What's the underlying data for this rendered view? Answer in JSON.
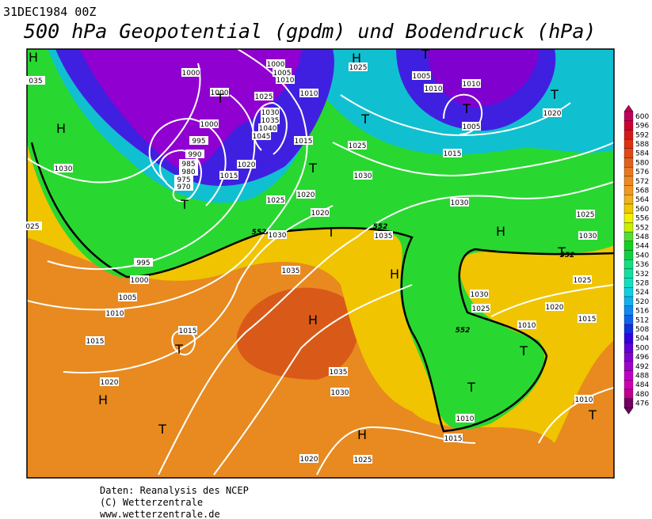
{
  "header": {
    "date": "31DEC1984 00Z",
    "title": "500 hPa Geopotential (gpdm) und Bodendruck (hPa)"
  },
  "map": {
    "isobar_labels": [
      1000,
      1000,
      1000,
      1000,
      1005,
      1010,
      1025,
      1030,
      1035,
      1040,
      1045,
      1010,
      1015,
      1020,
      1015,
      995,
      990,
      985,
      980,
      975,
      970,
      1030,
      "035",
      "025",
      1025,
      1005,
      1010,
      1010,
      1005,
      1015,
      1020,
      1025,
      1030,
      1020,
      1025,
      1020,
      1030,
      1035,
      1030,
      1025,
      1030,
      995,
      1000,
      1005,
      1010,
      1035,
      1015,
      1015,
      1020,
      1035,
      1030,
      1030,
      1025,
      1020,
      1025,
      1015,
      1010,
      1010,
      1015,
      1010,
      1020,
      1025
    ],
    "contour_labels": [
      552,
      552,
      552,
      552
    ],
    "high_markers": [
      "H",
      "H",
      "H",
      "H",
      "H",
      "H",
      "H",
      "H"
    ],
    "low_markers": [
      "T",
      "T",
      "T",
      "T",
      "T",
      "T",
      "T",
      "T",
      "T",
      "T",
      "T",
      "T",
      "T",
      "T"
    ]
  },
  "colorbar": {
    "levels": [
      600,
      596,
      592,
      588,
      584,
      580,
      576,
      572,
      568,
      564,
      560,
      556,
      552,
      548,
      544,
      540,
      536,
      532,
      528,
      524,
      520,
      516,
      512,
      508,
      504,
      500,
      496,
      492,
      488,
      484,
      480,
      476
    ],
    "colors": [
      "#c0005a",
      "#d00030",
      "#d81818",
      "#e03010",
      "#e04818",
      "#e06020",
      "#e87820",
      "#f08820",
      "#f09820",
      "#f0b020",
      "#f0c800",
      "#f0f000",
      "#c8f000",
      "#50e030",
      "#10d020",
      "#10d040",
      "#10e080",
      "#10e0a0",
      "#10e0c0",
      "#10d0e0",
      "#10b0f0",
      "#1088f0",
      "#1060f0",
      "#1030e0",
      "#3000e0",
      "#6000d8",
      "#8000d0",
      "#a000c8",
      "#c000c8",
      "#d000b0",
      "#c0008a",
      "#700060"
    ]
  },
  "footer": {
    "lines": [
      "Daten: Reanalysis des NCEP",
      "(C) Wetterzentrale",
      "www.wetterzentrale.de"
    ]
  }
}
